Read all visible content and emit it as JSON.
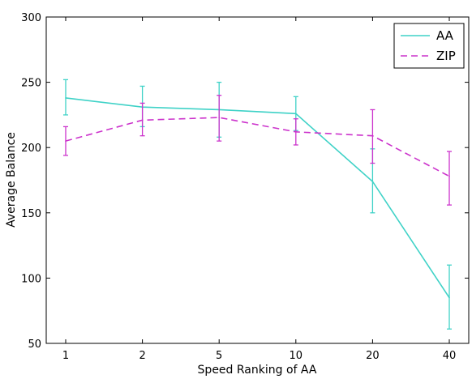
{
  "chart_data": {
    "type": "line",
    "title": "",
    "xlabel": "Speed Ranking of AA",
    "ylabel": "Average Balance",
    "categories": [
      "1",
      "2",
      "5",
      "10",
      "20",
      "40"
    ],
    "ylim": [
      50,
      300
    ],
    "yticks": [
      50,
      100,
      150,
      200,
      250,
      300
    ],
    "grid": false,
    "legend_position": "top-right",
    "series": [
      {
        "name": "AA",
        "color": "#3fd2c7",
        "linestyle": "solid",
        "values": [
          238,
          231,
          229,
          226,
          174,
          85
        ],
        "error_low": [
          225,
          216,
          208,
          213,
          150,
          61
        ],
        "error_high": [
          252,
          247,
          250,
          239,
          199,
          110
        ]
      },
      {
        "name": "ZIP",
        "color": "#cc33cc",
        "linestyle": "dashed",
        "values": [
          205,
          221,
          223,
          212,
          209,
          178
        ],
        "error_low": [
          194,
          209,
          205,
          202,
          188,
          156
        ],
        "error_high": [
          216,
          234,
          240,
          222,
          229,
          197
        ]
      }
    ]
  }
}
